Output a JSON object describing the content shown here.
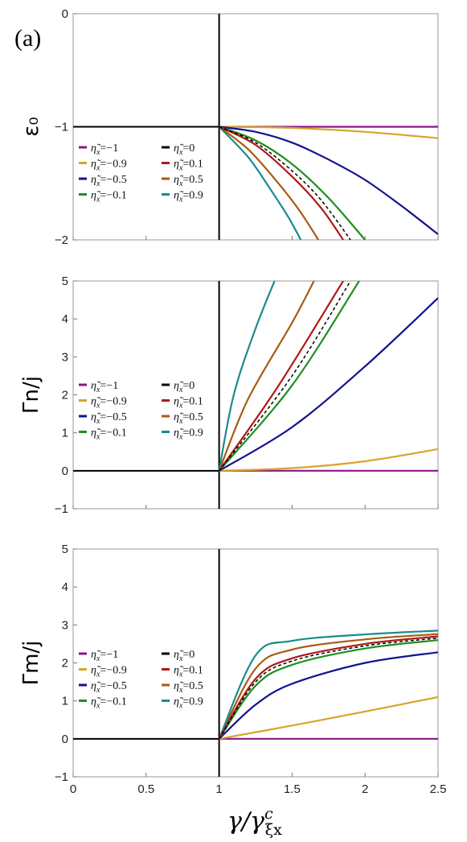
{
  "panel_label": "(a)",
  "colors": {
    "-1": "#8b148b",
    "-0.9": "#d6a52b",
    "-0.5": "#12138f",
    "-0.1": "#1e8f1e",
    "0": "#000000",
    "0.1": "#b01818",
    "0.5": "#a85a12",
    "0.9": "#1a8c8c"
  },
  "legend": {
    "param_symbol": "η̃",
    "param_subscript": "x",
    "entries": [
      "-1",
      "-0.9",
      "-0.5",
      "-0.1",
      "0",
      "0.1",
      "0.5",
      "0.9"
    ],
    "labels": [
      "=−1",
      "=−0.9",
      "=−0.5",
      "=−0.1",
      "=0",
      "=0.1",
      "=0.5",
      "=0.9"
    ]
  },
  "chart_data": [
    {
      "type": "line",
      "id": "epsilon",
      "ylabel": "ε₀",
      "ylim": [
        -2,
        0
      ],
      "yticks": [
        "0",
        "−1",
        "−2"
      ],
      "xlim": [
        0,
        2.5
      ],
      "legend_position": "left-middle",
      "series": [
        {
          "name": "η̃x=-1",
          "key": "-1",
          "x": [
            1,
            1.5,
            2,
            2.5
          ],
          "y": [
            -1,
            -1,
            -1,
            -1
          ]
        },
        {
          "name": "η̃x=-0.9",
          "key": "-0.9",
          "x": [
            1,
            1.5,
            2,
            2.5
          ],
          "y": [
            -1,
            -1.01,
            -1.045,
            -1.1
          ]
        },
        {
          "name": "η̃x=-0.5",
          "key": "-0.5",
          "x": [
            1,
            1.25,
            1.5,
            1.75,
            2,
            2.25,
            2.5
          ],
          "y": [
            -1,
            -1.045,
            -1.14,
            -1.29,
            -1.47,
            -1.7,
            -1.95
          ]
        },
        {
          "name": "η̃x=-0.1",
          "key": "-0.1",
          "x": [
            1,
            1.25,
            1.5,
            1.75,
            2
          ],
          "y": [
            -1,
            -1.12,
            -1.33,
            -1.63,
            -2
          ]
        },
        {
          "name": "η̃x=0",
          "key": "0",
          "dashed": true,
          "x": [
            1,
            1.25,
            1.5,
            1.7,
            1.9
          ],
          "y": [
            -1,
            -1.14,
            -1.39,
            -1.65,
            -2
          ]
        },
        {
          "name": "η̃x=0.1",
          "key": "0.1",
          "x": [
            1,
            1.25,
            1.5,
            1.7,
            1.85
          ],
          "y": [
            -1,
            -1.16,
            -1.44,
            -1.72,
            -2
          ]
        },
        {
          "name": "η̃x=0.5",
          "key": "0.5",
          "x": [
            1,
            1.2,
            1.4,
            1.55,
            1.68
          ],
          "y": [
            -1,
            -1.2,
            -1.49,
            -1.74,
            -2
          ]
        },
        {
          "name": "η̃x=0.9",
          "key": "0.9",
          "x": [
            1,
            1.2,
            1.35,
            1.47,
            1.56
          ],
          "y": [
            -1,
            -1.27,
            -1.55,
            -1.79,
            -2
          ]
        }
      ]
    },
    {
      "type": "line",
      "id": "gamma_n",
      "ylabel": "Γn/j",
      "ylim": [
        -1,
        5
      ],
      "yticks": [
        "5",
        "4",
        "3",
        "2",
        "1",
        "0",
        "−1"
      ],
      "xlim": [
        0,
        2.5
      ],
      "legend_position": "left-middle",
      "series": [
        {
          "name": "η̃x=-1",
          "key": "-1",
          "x": [
            1,
            2.5
          ],
          "y": [
            0,
            0
          ]
        },
        {
          "name": "η̃x=-0.9",
          "key": "-0.9",
          "x": [
            1,
            1.5,
            2,
            2.5
          ],
          "y": [
            0,
            0.07,
            0.25,
            0.57
          ]
        },
        {
          "name": "η̃x=-0.5",
          "key": "-0.5",
          "x": [
            1,
            1.5,
            2,
            2.5
          ],
          "y": [
            0,
            1.15,
            2.75,
            4.55
          ]
        },
        {
          "name": "η̃x=-0.1",
          "key": "-0.1",
          "x": [
            1,
            1.5,
            1.96
          ],
          "y": [
            0,
            2.25,
            5
          ]
        },
        {
          "name": "η̃x=0",
          "key": "0",
          "dashed": true,
          "x": [
            1,
            1.5,
            1.9
          ],
          "y": [
            0,
            2.5,
            5
          ]
        },
        {
          "name": "η̃x=0.1",
          "key": "0.1",
          "x": [
            1,
            1.4,
            1.85
          ],
          "y": [
            0,
            2.2,
            5
          ]
        },
        {
          "name": "η̃x=0.5",
          "key": "0.5",
          "x": [
            1,
            1.2,
            1.5,
            1.65
          ],
          "y": [
            0,
            1.9,
            3.9,
            5
          ]
        },
        {
          "name": "η̃x=0.9",
          "key": "0.9",
          "x": [
            1,
            1.1,
            1.25,
            1.38
          ],
          "y": [
            0,
            2.0,
            3.75,
            5
          ]
        }
      ]
    },
    {
      "type": "line",
      "id": "gamma_m",
      "ylabel": "Γm/j",
      "ylim": [
        -1,
        5
      ],
      "yticks": [
        "5",
        "4",
        "3",
        "2",
        "1",
        "0",
        "−1"
      ],
      "xlim": [
        0,
        2.5
      ],
      "xticks": [
        "0",
        "0.5",
        "1",
        "1.5",
        "2",
        "2.5"
      ],
      "xlabel": "γ/γ",
      "xlabel_sup": "c",
      "xlabel_sub": "ξx",
      "legend_position": "left-middle",
      "series": [
        {
          "name": "η̃x=-1",
          "key": "-1",
          "x": [
            1,
            2.5
          ],
          "y": [
            0,
            0
          ]
        },
        {
          "name": "η̃x=-0.9",
          "key": "-0.9",
          "x": [
            1,
            1.5,
            2,
            2.5
          ],
          "y": [
            0,
            0.35,
            0.72,
            1.1
          ]
        },
        {
          "name": "η̃x=-0.5",
          "key": "-0.5",
          "x": [
            1,
            1.25,
            1.5,
            2,
            2.5
          ],
          "y": [
            0,
            0.9,
            1.45,
            2.0,
            2.28
          ]
        },
        {
          "name": "η̃x=-0.1",
          "key": "-0.1",
          "x": [
            1,
            1.25,
            1.5,
            2,
            2.5
          ],
          "y": [
            0,
            1.4,
            1.95,
            2.38,
            2.6
          ]
        },
        {
          "name": "η̃x=0",
          "key": "0",
          "dashed": true,
          "x": [
            1,
            1.25,
            1.5,
            2,
            2.5
          ],
          "y": [
            0,
            1.5,
            2.05,
            2.45,
            2.65
          ]
        },
        {
          "name": "η̃x=0.1",
          "key": "0.1",
          "x": [
            1,
            1.25,
            1.5,
            2,
            2.5
          ],
          "y": [
            0,
            1.58,
            2.12,
            2.5,
            2.7
          ]
        },
        {
          "name": "η̃x=0.5",
          "key": "0.5",
          "x": [
            1,
            1.25,
            1.5,
            2,
            2.5
          ],
          "y": [
            0,
            1.85,
            2.35,
            2.62,
            2.76
          ]
        },
        {
          "name": "η̃x=0.9",
          "key": "0.9",
          "x": [
            1,
            1.25,
            1.5,
            2,
            2.5
          ],
          "y": [
            0,
            2.2,
            2.58,
            2.75,
            2.85
          ]
        }
      ]
    }
  ]
}
